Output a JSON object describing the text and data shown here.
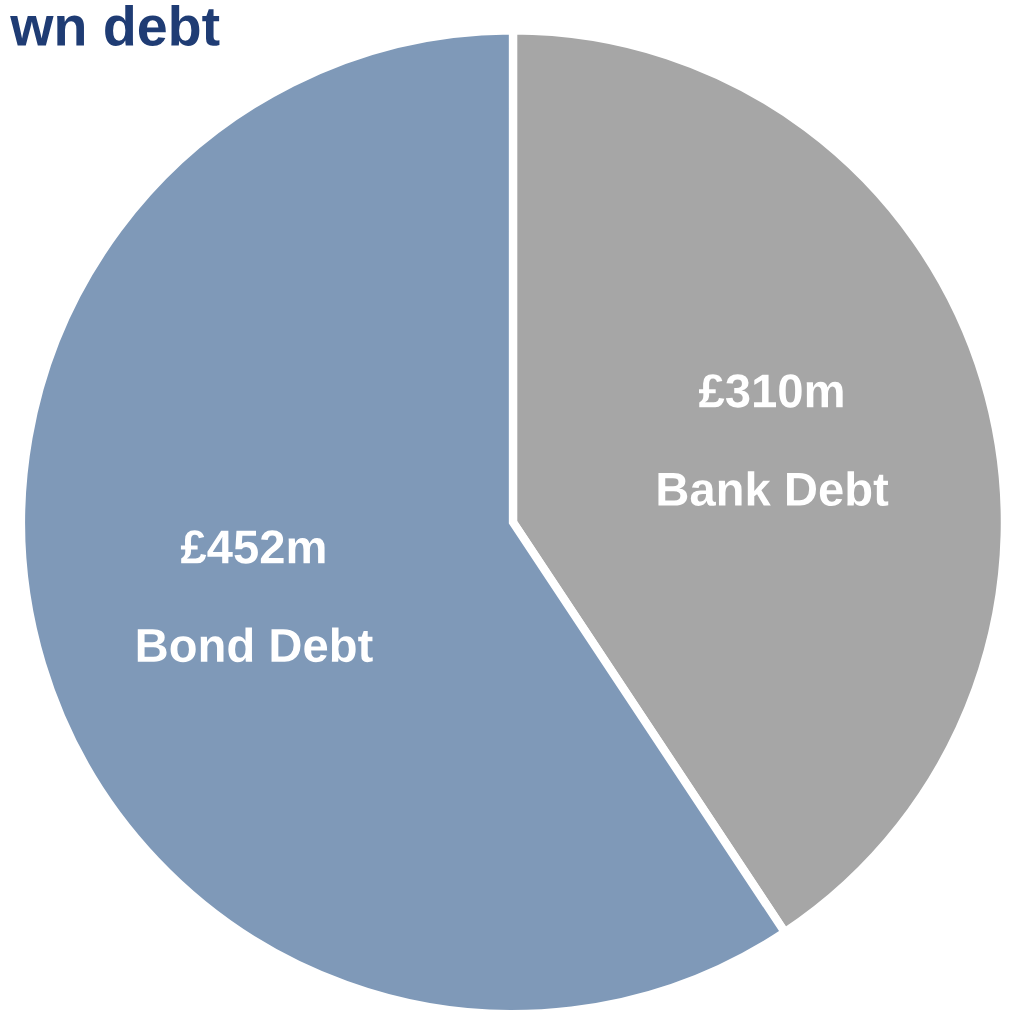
{
  "chart_data": {
    "type": "pie",
    "title": "wn debt",
    "categories": [
      "Bank Debt",
      "Bond Debt"
    ],
    "values": [
      310,
      452
    ],
    "colors": [
      "#a6a6a6",
      "#7f99b8"
    ],
    "value_labels": [
      "£310m",
      "£452m"
    ],
    "legend": false
  }
}
